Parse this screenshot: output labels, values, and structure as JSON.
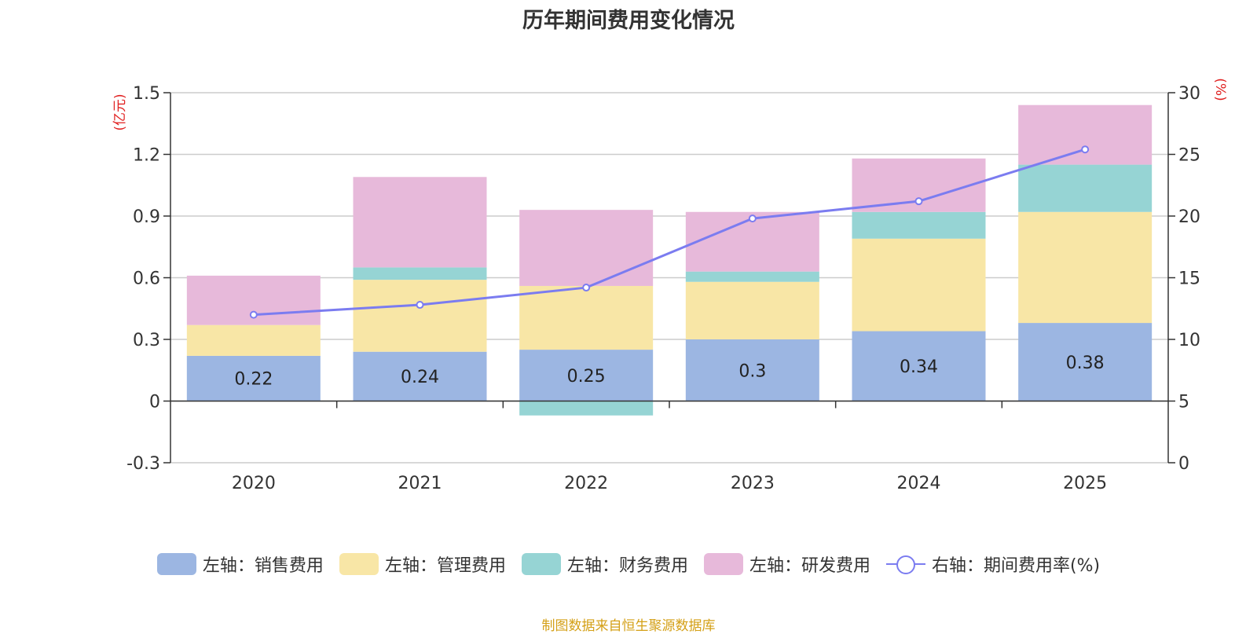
{
  "chart_data": {
    "type": "bar",
    "title": "历年期间费用变化情况",
    "categories": [
      "2020",
      "2021",
      "2022",
      "2023",
      "2024",
      "2025"
    ],
    "series": [
      {
        "name": "左轴：销售费用",
        "axis": "left",
        "color": "#9cb6e2",
        "values": [
          0.22,
          0.24,
          0.25,
          0.3,
          0.34,
          0.38
        ],
        "labels": [
          "0.22",
          "0.24",
          "0.25",
          "0.3",
          "0.34",
          "0.38"
        ]
      },
      {
        "name": "左轴：管理费用",
        "axis": "left",
        "color": "#f8e6a6",
        "values": [
          0.15,
          0.35,
          0.31,
          0.28,
          0.45,
          0.54
        ]
      },
      {
        "name": "左轴：财务费用",
        "axis": "left",
        "color": "#96d4d4",
        "values": [
          0.0,
          0.06,
          -0.07,
          0.05,
          0.13,
          0.23
        ]
      },
      {
        "name": "左轴：研发费用",
        "axis": "left",
        "color": "#e7b9da",
        "values": [
          0.24,
          0.44,
          0.37,
          0.29,
          0.26,
          0.29
        ]
      },
      {
        "name": "右轴：期间费用率(%)",
        "axis": "right",
        "type": "line",
        "color": "#7b7cf0",
        "values": [
          12.0,
          12.8,
          14.2,
          19.8,
          21.2,
          25.4
        ]
      }
    ],
    "yleft": {
      "label": "(亿元)",
      "ylim": [
        -0.3,
        1.5
      ],
      "ticks": [
        -0.3,
        0,
        0.3,
        0.6,
        0.9,
        1.2,
        1.5
      ],
      "tick_labels": [
        "-0.3",
        "0",
        "0.3",
        "0.6",
        "0.9",
        "1.2",
        "1.5"
      ]
    },
    "yright": {
      "label": "(%)",
      "ylim": [
        0,
        30
      ],
      "ticks": [
        0,
        5,
        10,
        15,
        20,
        25,
        30
      ],
      "tick_labels": [
        "0",
        "5",
        "10",
        "15",
        "20",
        "25",
        "30"
      ]
    },
    "grid": true,
    "legend": "bottom"
  },
  "source": "制图数据来自恒生聚源数据库"
}
